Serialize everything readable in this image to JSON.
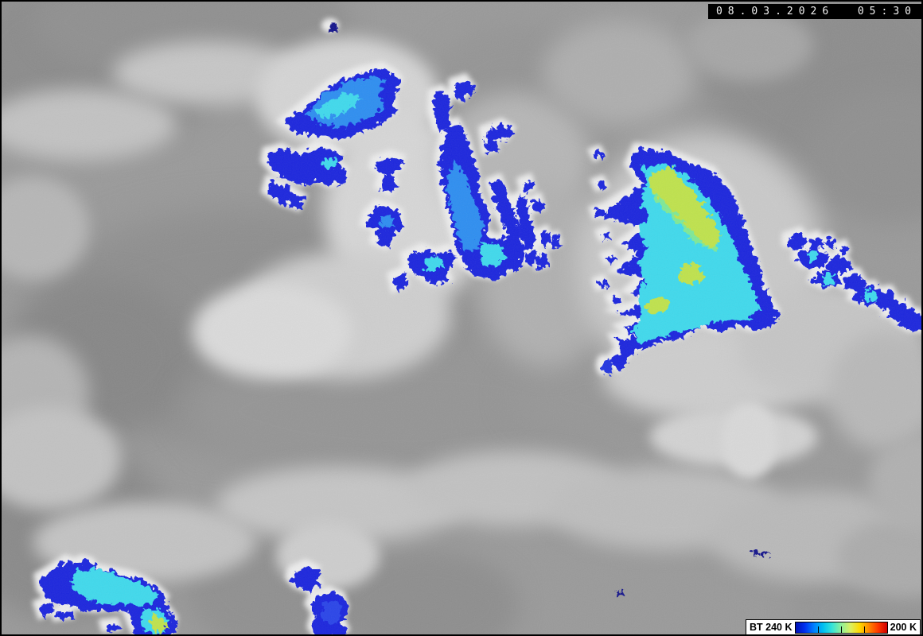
{
  "header": {
    "timestamp": "08.03.2026  05:30"
  },
  "legend": {
    "bt_label": "BT 240 K",
    "max_label": "200 K",
    "tick_count": 3,
    "gradient": [
      "#0010b4",
      "#0030f0",
      "#0080ff",
      "#00c0f0",
      "#38e4d8",
      "#90f098",
      "#dcf060",
      "#ffd800",
      "#ff8800",
      "#ff3800",
      "#d00000"
    ]
  },
  "colors": {
    "cold_blue": "#1c26dd",
    "cold_blue_light": "#2945e8",
    "cold_azure": "#2f8ef0",
    "cold_cyan": "#3fd9ec",
    "cold_green": "#7fe897",
    "cold_core_yellow": "#bfe24e",
    "halo_white": "#ededed",
    "speck_navy": "#15158c"
  }
}
